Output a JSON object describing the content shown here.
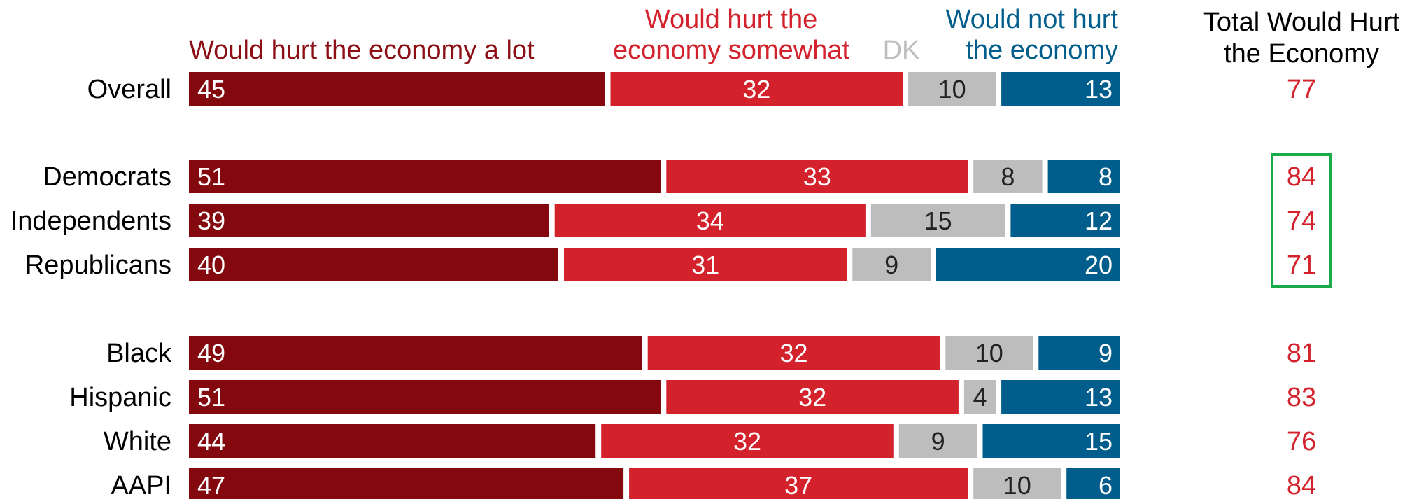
{
  "chart_data": {
    "type": "bar",
    "orientation": "horizontal",
    "stacked": true,
    "title": "",
    "xlabel": "",
    "ylabel": "",
    "xlim": [
      0,
      100
    ],
    "legend_position": "top",
    "grid": false,
    "categories": [
      "Overall",
      "Democrats",
      "Independents",
      "Republicans",
      "Black",
      "Hispanic",
      "White",
      "AAPI"
    ],
    "series": [
      {
        "name": "Would hurt the economy a lot",
        "label_lines": [
          "Would hurt the economy a lot"
        ],
        "color": "#84090f",
        "label_color": "#8b0f14",
        "values": [
          45,
          51,
          39,
          40,
          49,
          51,
          44,
          47
        ]
      },
      {
        "name": "Would hurt the economy somewhat",
        "label_lines": [
          "Would hurt the",
          "economy somewhat"
        ],
        "color": "#d3222c",
        "label_color": "#d3222c",
        "values": [
          32,
          33,
          34,
          31,
          32,
          32,
          32,
          37
        ]
      },
      {
        "name": "DK",
        "label_lines": [
          "DK"
        ],
        "color": "#bdbdbd",
        "label_color": "#bdbdbd",
        "values": [
          10,
          8,
          15,
          9,
          10,
          4,
          9,
          10
        ]
      },
      {
        "name": "Would not hurt the economy",
        "label_lines": [
          "Would not hurt",
          "the economy"
        ],
        "color": "#005d8c",
        "label_color": "#005d8c",
        "values": [
          13,
          8,
          12,
          20,
          9,
          13,
          15,
          6
        ]
      }
    ],
    "totals": {
      "header_lines": [
        "Total Would Hurt",
        "the Economy"
      ],
      "values": [
        77,
        84,
        74,
        71,
        81,
        83,
        76,
        84
      ],
      "color": "#d3222c",
      "highlight_box_color": "#1aaa4a",
      "highlighted_categories": [
        "Democrats",
        "Independents",
        "Republicans"
      ]
    }
  }
}
